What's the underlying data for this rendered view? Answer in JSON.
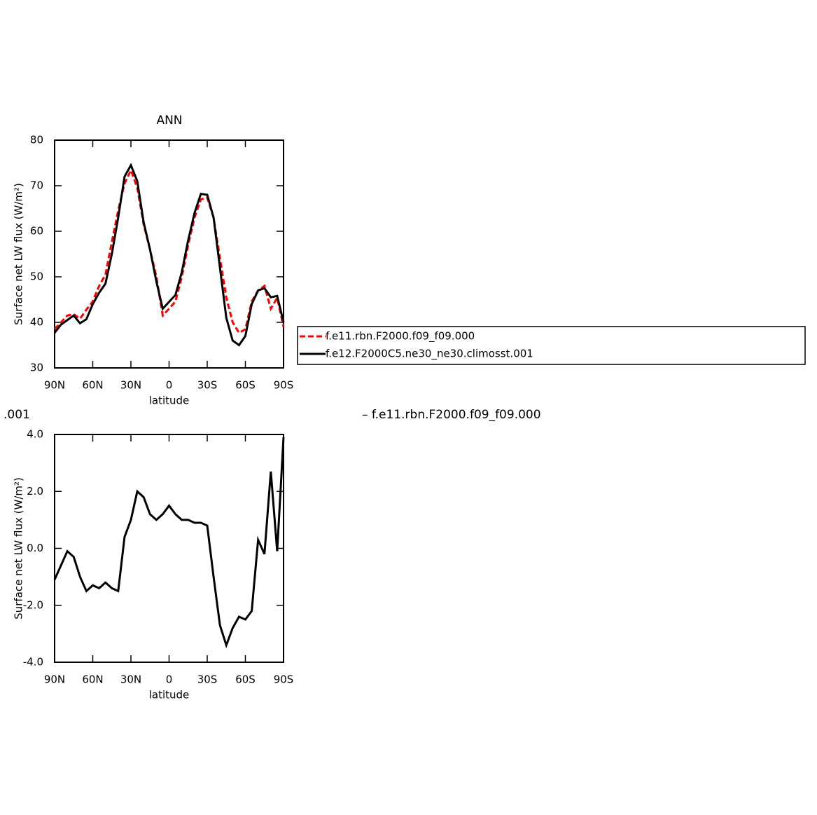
{
  "chart_data": [
    {
      "type": "line",
      "title": "ANN",
      "x_label": "latitude",
      "y_label": "Surface net LW flux (W/m²)",
      "x": [
        90,
        85,
        80,
        75,
        70,
        65,
        60,
        55,
        50,
        45,
        40,
        35,
        30,
        25,
        20,
        15,
        10,
        5,
        0,
        -5,
        -10,
        -15,
        -20,
        -25,
        -30,
        -35,
        -40,
        -45,
        -50,
        -55,
        -60,
        -65,
        -70,
        -75,
        -80,
        -85,
        -90
      ],
      "series": [
        {
          "name": "f.e11.rbn.F2000.f09_f09.000",
          "color": "#ff0000",
          "linestyle": "dashed",
          "values": [
            38.5,
            40,
            41.5,
            41.8,
            40.8,
            42.8,
            44.6,
            48,
            50.5,
            57.7,
            64.6,
            70.5,
            73.4,
            69.5,
            61.5,
            56,
            50,
            41.5,
            43,
            44.6,
            50,
            57,
            63,
            67,
            67.4,
            63,
            54,
            45.4,
            40,
            37.7,
            38.5,
            44.6,
            47,
            48,
            43,
            45.4,
            39
          ]
        },
        {
          "name": "f.e12.F2000C5.ne30_ne30.climosst.001",
          "color": "#000000",
          "linestyle": "solid",
          "values": [
            37.7,
            39.5,
            40.5,
            41.5,
            39.8,
            40.7,
            44,
            46.5,
            48.5,
            55,
            63,
            72,
            74.5,
            71,
            62,
            56,
            49,
            43,
            44.5,
            46,
            51,
            58,
            64,
            68.2,
            68,
            63,
            52,
            41,
            36,
            35,
            37,
            44,
            47,
            47.5,
            45.5,
            45.8,
            40
          ]
        }
      ],
      "xlim": [
        90,
        -90
      ],
      "ylim": [
        30,
        80
      ],
      "xticks": [
        {
          "value": 90,
          "label": "90N"
        },
        {
          "value": 60,
          "label": "60N"
        },
        {
          "value": 30,
          "label": "30N"
        },
        0,
        {
          "value": -30,
          "label": "30S"
        },
        {
          "value": -60,
          "label": "60S"
        },
        {
          "value": -90,
          "label": "90S"
        }
      ],
      "yticks": [
        30,
        40,
        50,
        60,
        70,
        80
      ],
      "legend": "outside right"
    },
    {
      "type": "line",
      "title": ".001",
      "subtitle": "– f.e11.rbn.F2000.f09_f09.000",
      "x_label": "latitude",
      "y_label": "Surface net LW flux (W/m²)",
      "x": [
        90,
        85,
        80,
        75,
        70,
        65,
        60,
        55,
        50,
        45,
        40,
        35,
        30,
        25,
        20,
        15,
        10,
        5,
        0,
        -5,
        -10,
        -15,
        -20,
        -25,
        -30,
        -35,
        -40,
        -45,
        -50,
        -55,
        -60,
        -65,
        -70,
        -75,
        -80,
        -85,
        -90
      ],
      "color": "#000000",
      "values": [
        -1.1,
        -0.6,
        -0.1,
        -0.3,
        -1.0,
        -1.5,
        -1.3,
        -1.4,
        -1.2,
        -1.4,
        -1.5,
        0.4,
        1.0,
        2.0,
        1.8,
        1.2,
        1.0,
        1.2,
        1.5,
        1.2,
        1.0,
        1.0,
        0.9,
        0.9,
        0.8,
        -1.0,
        -2.7,
        -3.4,
        -2.8,
        -2.4,
        -2.5,
        -2.2,
        0.3,
        -0.2,
        2.7,
        -0.1,
        3.9
      ],
      "xlim": [
        90,
        -90
      ],
      "ylim": [
        -4,
        4
      ],
      "xticks": [
        {
          "value": 90,
          "label": "90N"
        },
        {
          "value": 60,
          "label": "60N"
        },
        {
          "value": 30,
          "label": "30N"
        },
        0,
        {
          "value": -30,
          "label": "30S"
        },
        {
          "value": -60,
          "label": "60S"
        },
        {
          "value": -90,
          "label": "90S"
        }
      ],
      "yticks": [
        {
          "value": 4,
          "label": "4.0"
        },
        {
          "value": 2,
          "label": "2.0"
        },
        {
          "value": 0,
          "label": "0.0"
        },
        {
          "value": -2,
          "label": "-2.0"
        },
        {
          "value": -4,
          "label": "-4.0"
        }
      ]
    }
  ]
}
